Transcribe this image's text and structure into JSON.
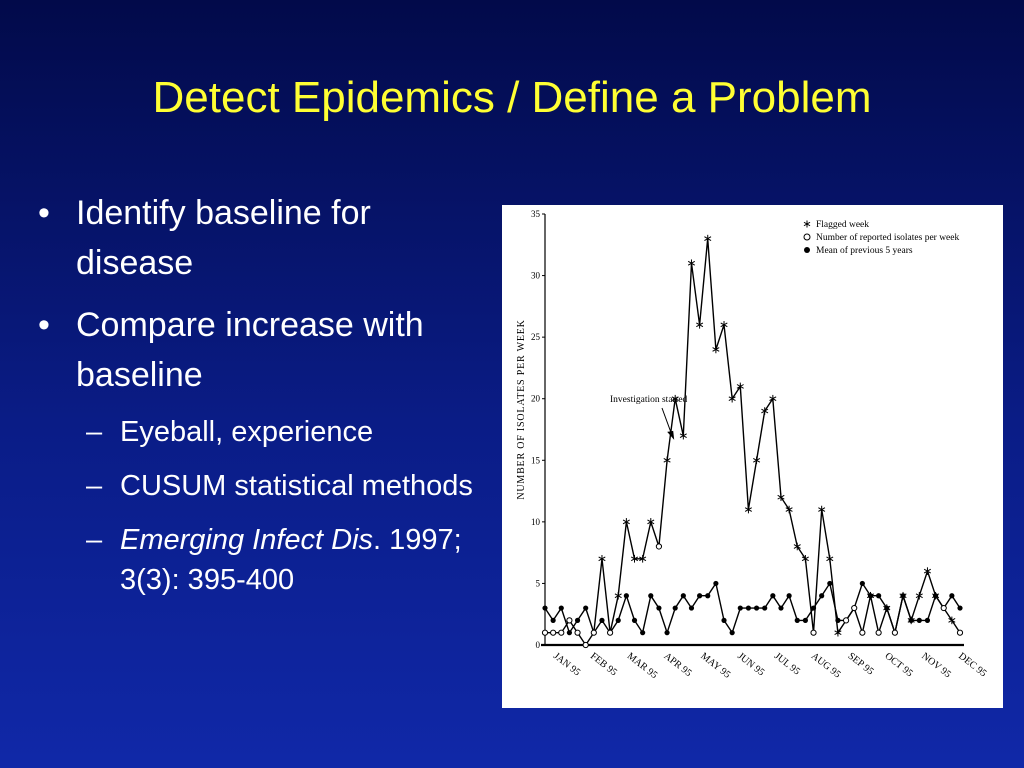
{
  "slide": {
    "title": "Detect Epidemics / Define a Problem",
    "bullets": [
      {
        "text": "Identify baseline for disease"
      },
      {
        "text": "Compare increase with baseline"
      }
    ],
    "sub_bullets": [
      {
        "text": "Eyeball, experience"
      },
      {
        "text": "CUSUM statistical methods"
      },
      {
        "italic": "Emerging Infect Dis",
        "text": ". 1997; 3(3): 395-400"
      }
    ]
  },
  "chart_data": {
    "type": "line",
    "ylabel": "NUMBER OF ISOLATES PER WEEK",
    "ylim": [
      0,
      35
    ],
    "y_ticks": [
      0,
      5,
      10,
      15,
      20,
      25,
      30,
      35
    ],
    "x_tick_labels": [
      "JAN 95",
      "FEB 95",
      "MAR 95",
      "APR 95",
      "MAY 95",
      "JUN 95",
      "JUL 95",
      "AUG 95",
      "SEP 95",
      "OCT 95",
      "NOV 95",
      "DEC 95"
    ],
    "week_range": [
      1,
      52
    ],
    "legend": [
      {
        "marker": "*",
        "label": "Flagged week"
      },
      {
        "marker": "○",
        "label": "Number of reported isolates per week"
      },
      {
        "marker": "●",
        "label": "Mean of previous 5 years"
      }
    ],
    "legend_position": "top-right",
    "annotation": {
      "text": "Investigation started",
      "week": 17,
      "value": 16.5
    },
    "series": [
      {
        "name": "Number of reported isolates per week",
        "values": [
          1,
          1,
          1,
          2,
          1,
          0,
          1,
          7,
          1,
          4,
          10,
          7,
          7,
          10,
          8,
          15,
          20,
          17,
          31,
          26,
          33,
          24,
          26,
          20,
          21,
          11,
          15,
          19,
          20,
          12,
          11,
          8,
          7,
          1,
          11,
          7,
          1,
          2,
          3,
          1,
          4,
          1,
          3,
          1,
          4,
          2,
          4,
          6,
          4,
          3,
          2,
          1
        ]
      },
      {
        "name": "Mean of previous 5 years",
        "values": [
          3,
          2,
          3,
          1,
          2,
          3,
          1,
          2,
          1,
          2,
          4,
          2,
          1,
          4,
          3,
          1,
          3,
          4,
          3,
          4,
          4,
          5,
          2,
          1,
          3,
          3,
          3,
          3,
          4,
          3,
          4,
          2,
          2,
          3,
          4,
          5,
          2,
          2,
          3,
          5,
          4,
          4,
          3,
          1,
          4,
          2,
          2,
          2,
          4,
          3,
          4,
          3
        ]
      }
    ],
    "flagged_weeks": [
      8,
      10,
      11,
      12,
      13,
      14,
      16,
      17,
      18,
      19,
      20,
      21,
      22,
      23,
      24,
      25,
      26,
      27,
      28,
      29,
      30,
      31,
      32,
      33,
      35,
      36,
      37,
      41,
      43,
      45,
      46,
      47,
      48,
      49,
      51
    ]
  }
}
